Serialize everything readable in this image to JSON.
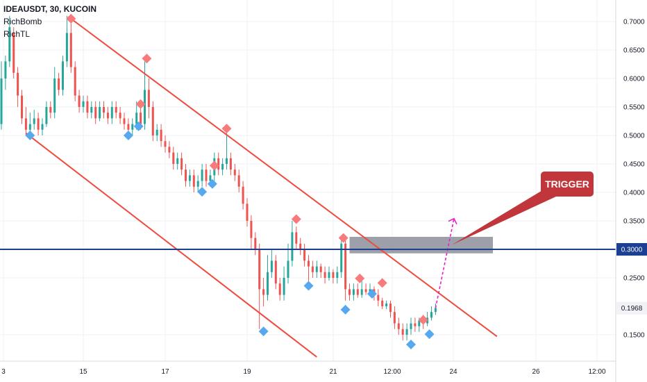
{
  "header": {
    "symbol": "IDEAUSDT, 30, KUCOIN",
    "indicators": [
      "RichBomb",
      "RichTL"
    ]
  },
  "chart_data": {
    "type": "candlestick",
    "title": "IDEAUSDT, 30, KUCOIN",
    "xlabel": "",
    "ylabel": "",
    "ylim": [
      0.11,
      0.73
    ],
    "x_ticks": [
      "3",
      "15",
      "17",
      "19",
      "21",
      "12:00",
      "24",
      "26",
      "12:00"
    ],
    "y_ticks": [
      "0.7000",
      "0.6500",
      "0.6000",
      "0.5500",
      "0.5000",
      "0.4500",
      "0.4000",
      "0.3500",
      "0.2500",
      "0.1500"
    ],
    "price_line": {
      "value": 0.3,
      "label": "0.3000",
      "color": "#1c3f94"
    },
    "last_price": {
      "value": 0.1968,
      "label": "0.1968"
    },
    "trigger_label": "TRIGGER",
    "colors": {
      "up": "#26a69a",
      "down": "#ef5350",
      "channel": "#ef4a3d",
      "resistance": "#f77b7b",
      "support": "#56a8ef",
      "projection": "#e91ec8",
      "zone": "#8c8f99",
      "trigger": "#c0363a"
    },
    "channel_lines": [
      {
        "from": [
          14.7,
          0.705
        ],
        "to": [
          25.1,
          0.147
        ]
      },
      {
        "from": [
          13.6,
          0.504
        ],
        "to": [
          20.7,
          0.111
        ]
      }
    ],
    "zone": {
      "x": [
        21.5,
        25.0
      ],
      "y": [
        0.293,
        0.322
      ]
    },
    "candles": [
      [
        13.0,
        0.52,
        0.6,
        0.51,
        0.63
      ],
      [
        13.1,
        0.6,
        0.63,
        0.58,
        0.64
      ],
      [
        13.2,
        0.63,
        0.69,
        0.62,
        0.71
      ],
      [
        13.3,
        0.68,
        0.61,
        0.6,
        0.69
      ],
      [
        13.4,
        0.61,
        0.57,
        0.55,
        0.62
      ],
      [
        13.5,
        0.57,
        0.53,
        0.52,
        0.58
      ],
      [
        13.6,
        0.53,
        0.51,
        0.5,
        0.55
      ],
      [
        13.7,
        0.51,
        0.52,
        0.5,
        0.54
      ],
      [
        13.8,
        0.52,
        0.53,
        0.51,
        0.545
      ],
      [
        13.9,
        0.53,
        0.51,
        0.5,
        0.54
      ],
      [
        14.0,
        0.51,
        0.52,
        0.5,
        0.53
      ],
      [
        14.1,
        0.52,
        0.55,
        0.515,
        0.56
      ],
      [
        14.2,
        0.55,
        0.54,
        0.53,
        0.56
      ],
      [
        14.3,
        0.54,
        0.6,
        0.53,
        0.62
      ],
      [
        14.4,
        0.6,
        0.58,
        0.57,
        0.61
      ],
      [
        14.5,
        0.58,
        0.63,
        0.57,
        0.64
      ],
      [
        14.6,
        0.63,
        0.68,
        0.62,
        0.71
      ],
      [
        14.7,
        0.68,
        0.62,
        0.61,
        0.7
      ],
      [
        14.8,
        0.62,
        0.57,
        0.56,
        0.63
      ],
      [
        14.9,
        0.57,
        0.55,
        0.54,
        0.58
      ],
      [
        15.0,
        0.55,
        0.56,
        0.54,
        0.57
      ],
      [
        15.1,
        0.56,
        0.54,
        0.53,
        0.57
      ],
      [
        15.2,
        0.54,
        0.55,
        0.53,
        0.56
      ],
      [
        15.3,
        0.55,
        0.53,
        0.52,
        0.56
      ],
      [
        15.4,
        0.53,
        0.55,
        0.525,
        0.56
      ],
      [
        15.5,
        0.55,
        0.54,
        0.53,
        0.56
      ],
      [
        15.6,
        0.54,
        0.53,
        0.52,
        0.55
      ],
      [
        15.7,
        0.53,
        0.55,
        0.52,
        0.56
      ],
      [
        15.8,
        0.55,
        0.54,
        0.53,
        0.56
      ],
      [
        15.9,
        0.54,
        0.53,
        0.52,
        0.55
      ],
      [
        16.0,
        0.53,
        0.52,
        0.51,
        0.54
      ],
      [
        16.1,
        0.52,
        0.51,
        0.5,
        0.53
      ],
      [
        16.2,
        0.51,
        0.52,
        0.5,
        0.53
      ],
      [
        16.3,
        0.52,
        0.54,
        0.51,
        0.56
      ],
      [
        16.4,
        0.54,
        0.52,
        0.51,
        0.55
      ],
      [
        16.5,
        0.52,
        0.58,
        0.51,
        0.63
      ],
      [
        16.6,
        0.58,
        0.55,
        0.53,
        0.6
      ],
      [
        16.7,
        0.55,
        0.5,
        0.49,
        0.56
      ],
      [
        16.8,
        0.5,
        0.51,
        0.49,
        0.52
      ],
      [
        16.9,
        0.51,
        0.49,
        0.48,
        0.52
      ],
      [
        17.0,
        0.49,
        0.48,
        0.47,
        0.5
      ],
      [
        17.1,
        0.48,
        0.47,
        0.46,
        0.49
      ],
      [
        17.2,
        0.47,
        0.45,
        0.44,
        0.48
      ],
      [
        17.3,
        0.45,
        0.46,
        0.44,
        0.47
      ],
      [
        17.4,
        0.46,
        0.44,
        0.43,
        0.47
      ],
      [
        17.5,
        0.44,
        0.42,
        0.41,
        0.45
      ],
      [
        17.6,
        0.42,
        0.43,
        0.41,
        0.44
      ],
      [
        17.7,
        0.43,
        0.41,
        0.4,
        0.44
      ],
      [
        17.8,
        0.41,
        0.42,
        0.4,
        0.43
      ],
      [
        17.9,
        0.42,
        0.44,
        0.41,
        0.45
      ],
      [
        18.0,
        0.44,
        0.42,
        0.41,
        0.45
      ],
      [
        18.1,
        0.42,
        0.43,
        0.41,
        0.44
      ],
      [
        18.2,
        0.43,
        0.46,
        0.42,
        0.47
      ],
      [
        18.3,
        0.46,
        0.44,
        0.43,
        0.47
      ],
      [
        18.4,
        0.44,
        0.45,
        0.43,
        0.46
      ],
      [
        18.5,
        0.45,
        0.46,
        0.44,
        0.51
      ],
      [
        18.6,
        0.46,
        0.44,
        0.43,
        0.47
      ],
      [
        18.7,
        0.44,
        0.43,
        0.42,
        0.45
      ],
      [
        18.8,
        0.43,
        0.41,
        0.4,
        0.44
      ],
      [
        18.9,
        0.41,
        0.38,
        0.37,
        0.42
      ],
      [
        19.0,
        0.38,
        0.35,
        0.34,
        0.39
      ],
      [
        19.1,
        0.35,
        0.32,
        0.3,
        0.36
      ],
      [
        19.2,
        0.32,
        0.3,
        0.29,
        0.33
      ],
      [
        19.3,
        0.3,
        0.23,
        0.16,
        0.31
      ],
      [
        19.4,
        0.23,
        0.22,
        0.2,
        0.25
      ],
      [
        19.5,
        0.22,
        0.26,
        0.21,
        0.29
      ],
      [
        19.6,
        0.26,
        0.28,
        0.25,
        0.3
      ],
      [
        19.7,
        0.28,
        0.24,
        0.23,
        0.29
      ],
      [
        19.8,
        0.24,
        0.22,
        0.21,
        0.25
      ],
      [
        19.9,
        0.22,
        0.25,
        0.21,
        0.27
      ],
      [
        20.0,
        0.25,
        0.28,
        0.24,
        0.31
      ],
      [
        20.1,
        0.28,
        0.33,
        0.27,
        0.35
      ],
      [
        20.2,
        0.33,
        0.31,
        0.3,
        0.34
      ],
      [
        20.3,
        0.31,
        0.3,
        0.29,
        0.32
      ],
      [
        20.4,
        0.3,
        0.28,
        0.27,
        0.31
      ],
      [
        20.5,
        0.28,
        0.27,
        0.24,
        0.29
      ],
      [
        20.6,
        0.27,
        0.26,
        0.25,
        0.28
      ],
      [
        20.7,
        0.26,
        0.27,
        0.25,
        0.28
      ],
      [
        20.8,
        0.27,
        0.26,
        0.25,
        0.275
      ],
      [
        20.9,
        0.26,
        0.25,
        0.24,
        0.27
      ],
      [
        21.0,
        0.25,
        0.26,
        0.245,
        0.27
      ],
      [
        21.1,
        0.26,
        0.25,
        0.24,
        0.265
      ],
      [
        21.2,
        0.25,
        0.26,
        0.24,
        0.27
      ],
      [
        21.3,
        0.26,
        0.31,
        0.25,
        0.32
      ],
      [
        21.4,
        0.31,
        0.23,
        0.21,
        0.32
      ],
      [
        21.5,
        0.23,
        0.22,
        0.21,
        0.24
      ],
      [
        21.6,
        0.22,
        0.23,
        0.21,
        0.24
      ],
      [
        21.7,
        0.23,
        0.22,
        0.215,
        0.24
      ],
      [
        21.8,
        0.22,
        0.23,
        0.215,
        0.245
      ],
      [
        21.9,
        0.23,
        0.225,
        0.22,
        0.24
      ],
      [
        22.0,
        0.225,
        0.23,
        0.22,
        0.24
      ],
      [
        22.1,
        0.23,
        0.22,
        0.21,
        0.235
      ],
      [
        22.2,
        0.22,
        0.21,
        0.2,
        0.23
      ],
      [
        22.3,
        0.21,
        0.2,
        0.195,
        0.215
      ],
      [
        22.4,
        0.2,
        0.205,
        0.195,
        0.21
      ],
      [
        22.5,
        0.205,
        0.19,
        0.18,
        0.21
      ],
      [
        22.6,
        0.19,
        0.17,
        0.16,
        0.2
      ],
      [
        22.7,
        0.17,
        0.16,
        0.15,
        0.18
      ],
      [
        22.8,
        0.16,
        0.15,
        0.14,
        0.17
      ],
      [
        22.9,
        0.15,
        0.16,
        0.14,
        0.17
      ],
      [
        23.0,
        0.16,
        0.17,
        0.15,
        0.18
      ],
      [
        23.1,
        0.17,
        0.165,
        0.155,
        0.18
      ],
      [
        23.2,
        0.165,
        0.175,
        0.155,
        0.18
      ],
      [
        23.3,
        0.175,
        0.17,
        0.16,
        0.185
      ],
      [
        23.4,
        0.17,
        0.18,
        0.165,
        0.19
      ],
      [
        23.5,
        0.18,
        0.19,
        0.175,
        0.2
      ],
      [
        23.6,
        0.19,
        0.197,
        0.185,
        0.205
      ]
    ],
    "resistance_markers": [
      [
        14.7,
        0.705
      ],
      [
        16.4,
        0.555
      ],
      [
        16.55,
        0.635
      ],
      [
        18.2,
        0.447
      ],
      [
        18.5,
        0.512
      ],
      [
        20.2,
        0.353
      ],
      [
        21.35,
        0.32
      ],
      [
        21.75,
        0.249
      ],
      [
        22.3,
        0.241
      ],
      [
        23.3,
        0.176
      ]
    ],
    "support_markers": [
      [
        13.7,
        0.5
      ],
      [
        16.1,
        0.5
      ],
      [
        16.35,
        0.516
      ],
      [
        17.9,
        0.401
      ],
      [
        18.15,
        0.415
      ],
      [
        19.4,
        0.156
      ],
      [
        20.5,
        0.236
      ],
      [
        21.4,
        0.194
      ],
      [
        22.05,
        0.222
      ],
      [
        23.0,
        0.133
      ],
      [
        23.45,
        0.151
      ]
    ],
    "projection": {
      "from": [
        23.6,
        0.197
      ],
      "to": [
        24.05,
        0.354
      ]
    }
  }
}
